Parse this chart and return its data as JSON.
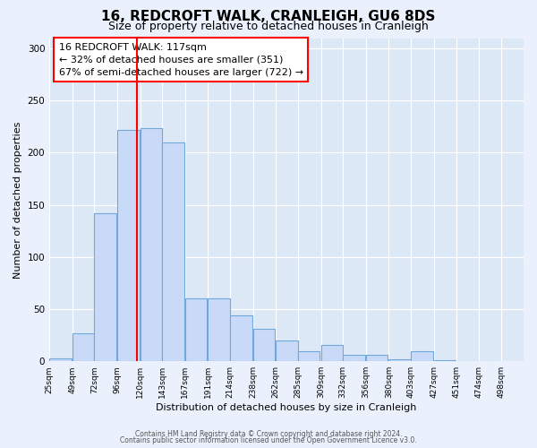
{
  "title": "16, REDCROFT WALK, CRANLEIGH, GU6 8DS",
  "subtitle": "Size of property relative to detached houses in Cranleigh",
  "xlabel": "Distribution of detached houses by size in Cranleigh",
  "ylabel": "Number of detached properties",
  "footer_line1": "Contains HM Land Registry data © Crown copyright and database right 2024.",
  "footer_line2": "Contains public sector information licensed under the Open Government Licence v3.0.",
  "bar_left_edges": [
    25,
    49,
    72,
    96,
    120,
    143,
    167,
    191,
    214,
    238,
    262,
    285,
    309,
    332,
    356,
    380,
    403,
    427,
    451,
    474
  ],
  "bar_heights": [
    3,
    27,
    142,
    222,
    224,
    210,
    60,
    60,
    44,
    31,
    20,
    10,
    16,
    6,
    6,
    2,
    10,
    1,
    0,
    0
  ],
  "bin_width": 23,
  "bar_color": "#c9daf8",
  "bar_edge_color": "#6fa8dc",
  "annotation_text_line1": "16 REDCROFT WALK: 117sqm",
  "annotation_text_line2": "← 32% of detached houses are smaller (351)",
  "annotation_text_line3": "67% of semi-detached houses are larger (722) →",
  "vline_x": 117,
  "ylim": [
    0,
    310
  ],
  "xlim": [
    25,
    521
  ],
  "tick_labels": [
    "25sqm",
    "49sqm",
    "72sqm",
    "96sqm",
    "120sqm",
    "143sqm",
    "167sqm",
    "191sqm",
    "214sqm",
    "238sqm",
    "262sqm",
    "285sqm",
    "309sqm",
    "332sqm",
    "356sqm",
    "380sqm",
    "403sqm",
    "427sqm",
    "451sqm",
    "474sqm",
    "498sqm"
  ],
  "tick_positions": [
    25,
    49,
    72,
    96,
    120,
    143,
    167,
    191,
    214,
    238,
    262,
    285,
    309,
    332,
    356,
    380,
    403,
    427,
    451,
    474,
    498
  ],
  "yticks": [
    0,
    50,
    100,
    150,
    200,
    250,
    300
  ],
  "bg_color": "#eaf1fc",
  "plot_bg_color": "#dce8f5",
  "title_fontsize": 11,
  "subtitle_fontsize": 9,
  "xlabel_fontsize": 8,
  "ylabel_fontsize": 8,
  "tick_fontsize": 6.5,
  "footer_fontsize": 5.5,
  "annot_fontsize": 8
}
